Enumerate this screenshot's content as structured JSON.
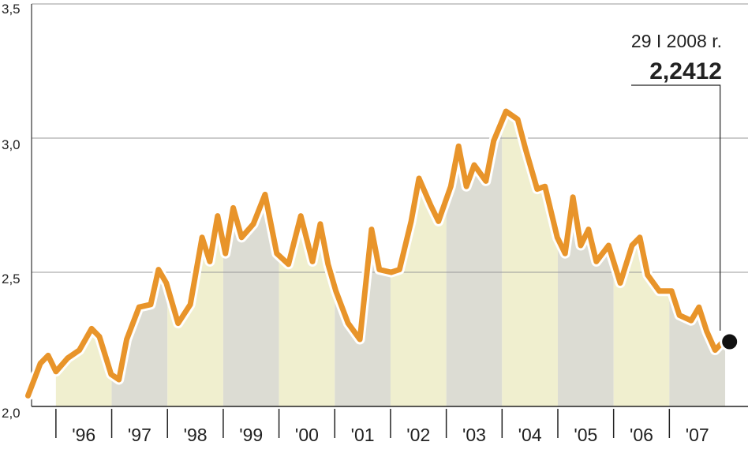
{
  "chart_data": {
    "type": "line",
    "annotation": "29 I 2008 r.",
    "x": [
      1995.5,
      1995.72,
      1995.86,
      1996.0,
      1996.21,
      1996.42,
      1996.64,
      1996.78,
      1996.99,
      1997.13,
      1997.27,
      1997.49,
      1997.7,
      1997.84,
      1997.98,
      1998.19,
      1998.41,
      1998.62,
      1998.76,
      1998.9,
      1999.04,
      1999.18,
      1999.33,
      1999.54,
      1999.75,
      1999.96,
      2000.17,
      2000.39,
      2000.6,
      2000.74,
      2000.88,
      2001.02,
      2001.24,
      2001.45,
      2001.66,
      2001.8,
      2002.01,
      2002.16,
      2002.37,
      2002.51,
      2002.72,
      2002.86,
      2003.08,
      2003.22,
      2003.36,
      2003.5,
      2003.71,
      2003.85,
      2004.07,
      2004.28,
      2004.42,
      2004.63,
      2004.77,
      2004.99,
      2005.13,
      2005.27,
      2005.41,
      2005.55,
      2005.69,
      2005.91,
      2006.12,
      2006.33,
      2006.47,
      2006.61,
      2006.82,
      2007.04,
      2007.18,
      2007.39,
      2007.53,
      2007.67,
      2007.82,
      2008.0,
      2008.08
    ],
    "values": [
      2.04,
      2.16,
      2.19,
      2.13,
      2.18,
      2.21,
      2.29,
      2.26,
      2.12,
      2.1,
      2.25,
      2.37,
      2.38,
      2.51,
      2.46,
      2.31,
      2.38,
      2.63,
      2.54,
      2.71,
      2.57,
      2.74,
      2.63,
      2.68,
      2.79,
      2.57,
      2.53,
      2.71,
      2.54,
      2.68,
      2.53,
      2.43,
      2.31,
      2.25,
      2.66,
      2.51,
      2.5,
      2.51,
      2.69,
      2.85,
      2.75,
      2.69,
      2.82,
      2.97,
      2.82,
      2.9,
      2.84,
      2.99,
      3.1,
      3.07,
      2.96,
      2.81,
      2.82,
      2.63,
      2.57,
      2.78,
      2.6,
      2.66,
      2.54,
      2.6,
      2.46,
      2.6,
      2.63,
      2.49,
      2.43,
      2.43,
      2.34,
      2.32,
      2.37,
      2.28,
      2.21,
      2.25,
      2.2412
    ],
    "value_labels": [
      null,
      null,
      null,
      null,
      null,
      null,
      null,
      null,
      null,
      null,
      null,
      null,
      null,
      null,
      null,
      null,
      null,
      null,
      null,
      null,
      null,
      null,
      null,
      null,
      null,
      null,
      null,
      null,
      null,
      null,
      null,
      null,
      null,
      null,
      null,
      null,
      null,
      null,
      null,
      null,
      null,
      null,
      null,
      null,
      null,
      null,
      null,
      null,
      null,
      null,
      null,
      null,
      null,
      null,
      null,
      null,
      null,
      null,
      null,
      null,
      null,
      null,
      null,
      null,
      null,
      null,
      null,
      null,
      null,
      null,
      null,
      null,
      "2,2412"
    ],
    "color": "#e8942a",
    "band_colors": [
      "#f0efcf",
      "#dcdcd3"
    ],
    "xlim": [
      1995.45,
      2008.41
    ],
    "xticks": [
      {
        "value": 1996,
        "label": "'96"
      },
      {
        "value": 1997,
        "label": "'97"
      },
      {
        "value": 1998,
        "label": "'98"
      },
      {
        "value": 1999,
        "label": "'99"
      },
      {
        "value": 2000,
        "label": "'00"
      },
      {
        "value": 2001,
        "label": "'01"
      },
      {
        "value": 2002,
        "label": "'02"
      },
      {
        "value": 2003,
        "label": "'03"
      },
      {
        "value": 2004,
        "label": "'04"
      },
      {
        "value": 2005,
        "label": "'05"
      },
      {
        "value": 2006,
        "label": "'06"
      },
      {
        "value": 2007,
        "label": "'07"
      }
    ],
    "ylim": [
      2.0,
      3.5
    ],
    "yticks": [
      {
        "value": 2.0,
        "label": "2,0"
      },
      {
        "value": 2.5,
        "label": "2,5"
      },
      {
        "value": 3.0,
        "label": "3,0"
      },
      {
        "value": 3.5,
        "label": "3,5"
      }
    ],
    "grid": true
  }
}
